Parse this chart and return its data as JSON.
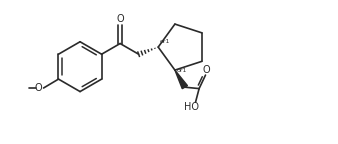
{
  "bg_color": "#ffffff",
  "line_color": "#2a2a2a",
  "line_width": 1.2,
  "font_size_label": 7.0,
  "font_size_stereo": 4.5,
  "figsize": [
    3.38,
    1.44
  ],
  "dpi": 100,
  "xlim": [
    0,
    9.5
  ],
  "ylim": [
    0,
    4.0
  ]
}
